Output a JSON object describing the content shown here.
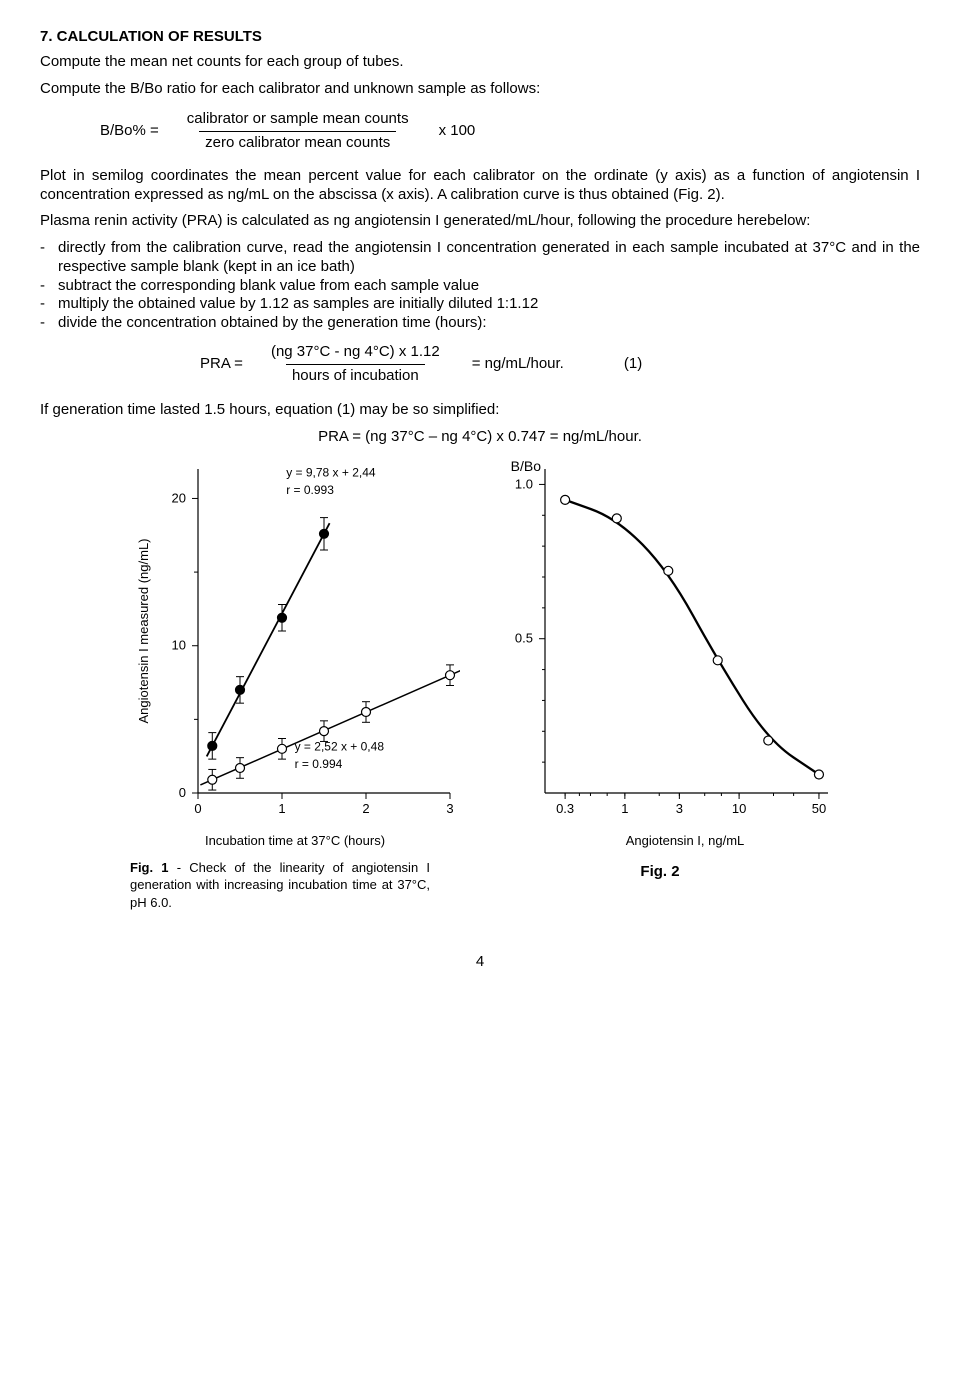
{
  "section": {
    "title": "7. CALCULATION OF RESULTS",
    "intro1": "Compute the mean net counts for each group of tubes.",
    "intro2": "Compute the B/Bo ratio for each calibrator and unknown sample as follows:"
  },
  "formula1": {
    "label": "B/Bo% =",
    "numerator": "calibrator or sample mean counts",
    "denominator": "zero calibrator mean counts",
    "multiplier": "x 100"
  },
  "para_plot": "Plot in semilog coordinates the mean percent value for each calibrator on the ordinate (y axis) as a function of angiotensin I concentration expressed as ng/mL on the abscissa (x axis). A calibration curve is thus obtained (Fig. 2).",
  "para_pra_intro": "Plasma renin activity (PRA) is calculated as ng angiotensin I generated/mL/hour, following the procedure herebelow:",
  "bullets": [
    "directly from the calibration curve, read the angiotensin I concentration generated in each sample incubated at 37°C and in the respective sample blank (kept in an ice bath)",
    "subtract the corresponding blank value from each sample value",
    "multiply the obtained value by 1.12 as samples are initially diluted 1:1.12",
    "divide the concentration obtained by the generation time (hours):"
  ],
  "formula2": {
    "label": "PRA =",
    "numerator": "(ng 37°C - ng 4°C) x 1.12",
    "denominator": "hours of incubation",
    "tail": "= ng/mL/hour.",
    "eqnum": "(1)"
  },
  "simplified_intro": "If generation time lasted 1.5 hours, equation (1) may be so simplified:",
  "simplified_eq": "PRA = (ng 37°C – ng 4°C) x 0.747 = ng/mL/hour.",
  "fig1": {
    "ylabel": "Angiotensin I measured (ng/mL)",
    "xlabel": "Incubation time at 37°C (hours)",
    "yticks": [
      0,
      10,
      20
    ],
    "xticks": [
      0,
      1,
      2,
      3
    ],
    "xrange": [
      0,
      3
    ],
    "yrange": [
      0,
      22
    ],
    "eq_upper": "y  =  9,78  x  +  2,44",
    "r_upper": "r = 0.993",
    "eq_lower": "y  =  2,52  x  +  0,48",
    "r_lower": "r = 0.994",
    "series_upper": {
      "points": [
        {
          "x": 0.17,
          "y": 3.2,
          "err": 0.9
        },
        {
          "x": 0.5,
          "y": 7.0,
          "err": 0.9
        },
        {
          "x": 1.0,
          "y": 11.9,
          "err": 0.9
        },
        {
          "x": 1.5,
          "y": 17.6,
          "err": 1.1
        }
      ],
      "color": "#000000",
      "line_width": 1.8,
      "marker": "filled-circle",
      "marker_size": 4.5
    },
    "series_lower": {
      "points": [
        {
          "x": 0.17,
          "y": 0.9,
          "err": 0.7
        },
        {
          "x": 0.5,
          "y": 1.7,
          "err": 0.7
        },
        {
          "x": 1.0,
          "y": 3.0,
          "err": 0.7
        },
        {
          "x": 1.5,
          "y": 4.2,
          "err": 0.7
        },
        {
          "x": 2.0,
          "y": 5.5,
          "err": 0.7
        },
        {
          "x": 3.0,
          "y": 8.0,
          "err": 0.7
        }
      ],
      "color": "#000000",
      "line_width": 1.5,
      "marker": "open-circle",
      "marker_size": 4.5
    },
    "caption": "Fig. 1 - Check of the linearity of angiotensin I generation with increasing incubation time at 37°C, pH 6.0."
  },
  "fig2": {
    "ylabel": "B/Bo",
    "xlabel": "Angiotensin I, ng/mL",
    "yticks": [
      0.5,
      1.0
    ],
    "yrange": [
      0,
      1.05
    ],
    "xticks": [
      0.3,
      1,
      3,
      10,
      50
    ],
    "xtick_labels": [
      "0.3",
      "1",
      "3",
      "10",
      "50"
    ],
    "points": [
      {
        "x": 0.3,
        "y": 0.95
      },
      {
        "x": 0.85,
        "y": 0.89
      },
      {
        "x": 2.4,
        "y": 0.72
      },
      {
        "x": 6.5,
        "y": 0.43
      },
      {
        "x": 18,
        "y": 0.17
      },
      {
        "x": 50,
        "y": 0.06
      }
    ],
    "line_color": "#000000",
    "line_width": 2.3,
    "marker_size": 4.5,
    "caption": "Fig. 2"
  },
  "page_number": "4",
  "colors": {
    "text": "#000000",
    "background": "#ffffff",
    "axis": "#000000"
  }
}
